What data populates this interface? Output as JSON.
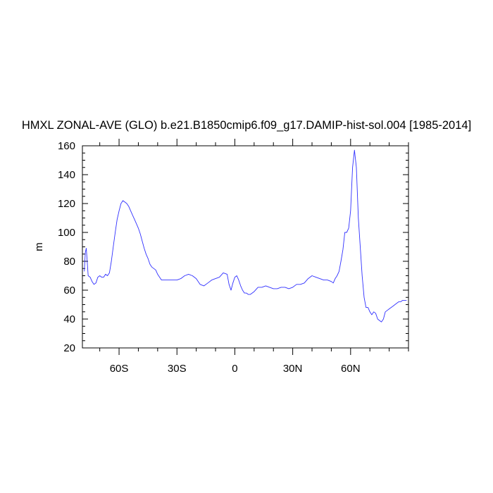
{
  "chart_data": {
    "type": "line",
    "title": "HMXL ZONAL-AVE (GLO) b.e21.B1850cmip6.f09_g17.DAMIP-hist-sol.004 [1985-2014]",
    "xlabel": "",
    "ylabel": "m",
    "xlim": [
      -79,
      90
    ],
    "ylim": [
      20,
      160
    ],
    "grid": false,
    "line_color": "#3030ff",
    "x_ticks": [
      {
        "value": -60,
        "label": "60S"
      },
      {
        "value": -30,
        "label": "30S"
      },
      {
        "value": 0,
        "label": "0"
      },
      {
        "value": 30,
        "label": "30N"
      },
      {
        "value": 60,
        "label": "60N"
      }
    ],
    "y_ticks": [
      {
        "value": 20,
        "label": "20"
      },
      {
        "value": 40,
        "label": "40"
      },
      {
        "value": 60,
        "label": "60"
      },
      {
        "value": 80,
        "label": "80"
      },
      {
        "value": 100,
        "label": "100"
      },
      {
        "value": 120,
        "label": "120"
      },
      {
        "value": 140,
        "label": "140"
      },
      {
        "value": 160,
        "label": "160"
      }
    ],
    "series": [
      {
        "x": [
          -78,
          -77.5,
          -77,
          -76.5,
          -76,
          -75,
          -74,
          -73,
          -72,
          -71,
          -70,
          -69,
          -68,
          -67,
          -66,
          -65,
          -64,
          -63,
          -62,
          -61,
          -60,
          -59,
          -58,
          -57,
          -56,
          -55,
          -54,
          -53,
          -52,
          -51,
          -50,
          -49,
          -48,
          -47,
          -46,
          -45,
          -44,
          -43,
          -42,
          -41,
          -40,
          -39,
          -38,
          -37,
          -36,
          -35,
          -34,
          -32,
          -30,
          -28,
          -26,
          -24,
          -22,
          -20,
          -18,
          -16,
          -14,
          -12,
          -10,
          -8,
          -6,
          -4,
          -3,
          -2,
          -1,
          0,
          1,
          2,
          3,
          4,
          5,
          6,
          7,
          8,
          10,
          12,
          14,
          16,
          18,
          20,
          22,
          24,
          26,
          28,
          30,
          32,
          34,
          36,
          38,
          40,
          42,
          44,
          46,
          48,
          50,
          51,
          52,
          53,
          54,
          55,
          56,
          57,
          58,
          59,
          60,
          61,
          62,
          63,
          64,
          65,
          66,
          67,
          68,
          69,
          70,
          71,
          72,
          73,
          74,
          75,
          76,
          77,
          78,
          79,
          80,
          81,
          82,
          83,
          84,
          85,
          86,
          87,
          88,
          89
        ],
        "y": [
          73,
          86,
          89,
          80,
          70,
          69,
          66,
          64,
          65,
          69,
          70,
          69,
          69,
          71,
          70,
          72,
          80,
          90,
          100,
          109,
          115,
          120,
          122,
          121,
          120,
          118,
          115,
          112,
          109,
          106,
          103,
          99,
          94,
          89,
          85,
          82,
          78,
          76,
          75,
          74,
          71,
          69,
          67,
          67,
          67,
          67,
          67,
          67,
          67,
          68,
          70,
          71,
          70,
          68,
          64,
          63,
          65,
          67,
          68,
          69,
          72,
          71,
          64,
          60,
          65,
          69,
          70,
          67,
          63,
          60,
          58,
          58,
          57,
          57,
          59,
          62,
          62,
          63,
          62,
          61,
          61,
          62,
          62,
          61,
          62,
          64,
          64,
          65,
          68,
          70,
          69,
          68,
          67,
          67,
          66,
          65,
          68,
          70,
          73,
          80,
          88,
          100,
          100,
          103,
          115,
          145,
          157,
          145,
          110,
          90,
          70,
          55,
          48,
          48,
          45,
          43,
          45,
          44,
          40,
          39,
          38,
          40,
          45,
          46,
          47,
          48,
          49,
          50,
          51,
          52,
          52,
          53,
          53,
          53
        ]
      }
    ]
  }
}
